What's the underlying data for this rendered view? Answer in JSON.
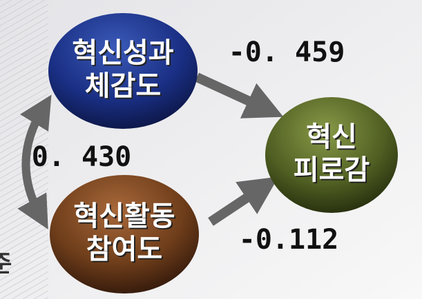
{
  "nodes": [
    {
      "label": [
        "혁신성과",
        "체감도"
      ]
    },
    {
      "label": [
        "혁신활동",
        "참여도"
      ]
    },
    {
      "label": [
        "혁신",
        "피로감"
      ]
    }
  ],
  "edges": [
    {
      "label": "-0. 459"
    },
    {
      "label": "0. 430"
    },
    {
      "label": "-0.112"
    }
  ],
  "fragment": "준"
}
